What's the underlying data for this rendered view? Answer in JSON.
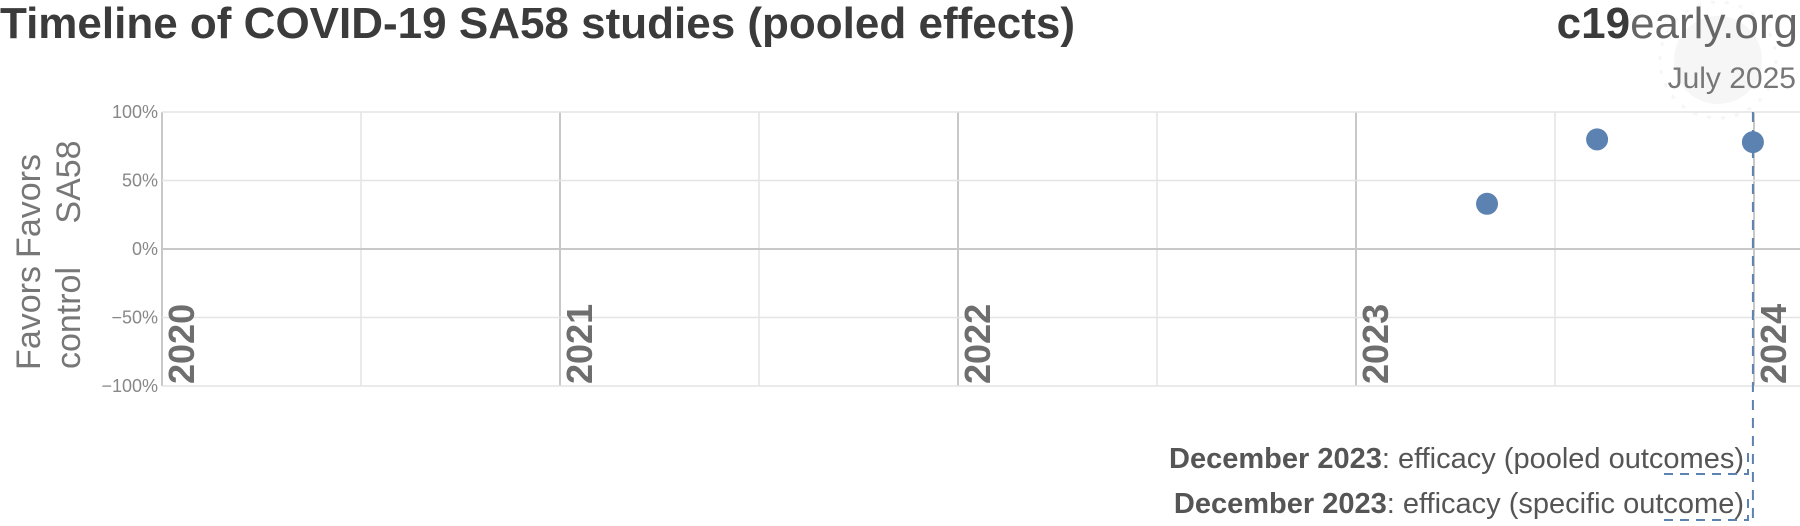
{
  "header": {
    "title": "Timeline of COVID-19 SA58 studies (pooled effects)",
    "brand_strong": "c19",
    "brand_light": "early.org",
    "date": "July 2025"
  },
  "y_side_labels": {
    "top_line1": "Favors",
    "top_line2": "SA58",
    "bottom_line1": "Favors",
    "bottom_line2": "control"
  },
  "annotations": [
    {
      "bold": "December 2023",
      "text": ": efficacy (pooled outcomes)"
    },
    {
      "bold": "December 2023",
      "text": ": efficacy (specific outcome)"
    }
  ],
  "colors": {
    "point": "#5b82b0",
    "grid": "#e4e4e4",
    "major_grid": "#c8c8c8",
    "marker": "#5b82b0"
  },
  "chart_data": {
    "type": "scatter",
    "title": "Timeline of COVID-19 SA58 studies (pooled effects)",
    "xlabel": "",
    "ylabel": "",
    "xlim": [
      "2020-01-01",
      "2024-01-01"
    ],
    "ylim": [
      -100,
      100
    ],
    "x_ticks": [
      "2020",
      "2021",
      "2022",
      "2023",
      "2024"
    ],
    "y_ticks": [
      "100%",
      "50%",
      "0%",
      "−50%",
      "−100%"
    ],
    "y_tick_values": [
      100,
      50,
      0,
      -50,
      -100
    ],
    "points": [
      {
        "date": "2023-05-01",
        "value": 33
      },
      {
        "date": "2023-08-10",
        "value": 80
      },
      {
        "date": "2023-12-31",
        "value": 78
      }
    ],
    "marker_date": "2023-12-31",
    "grid": true
  }
}
